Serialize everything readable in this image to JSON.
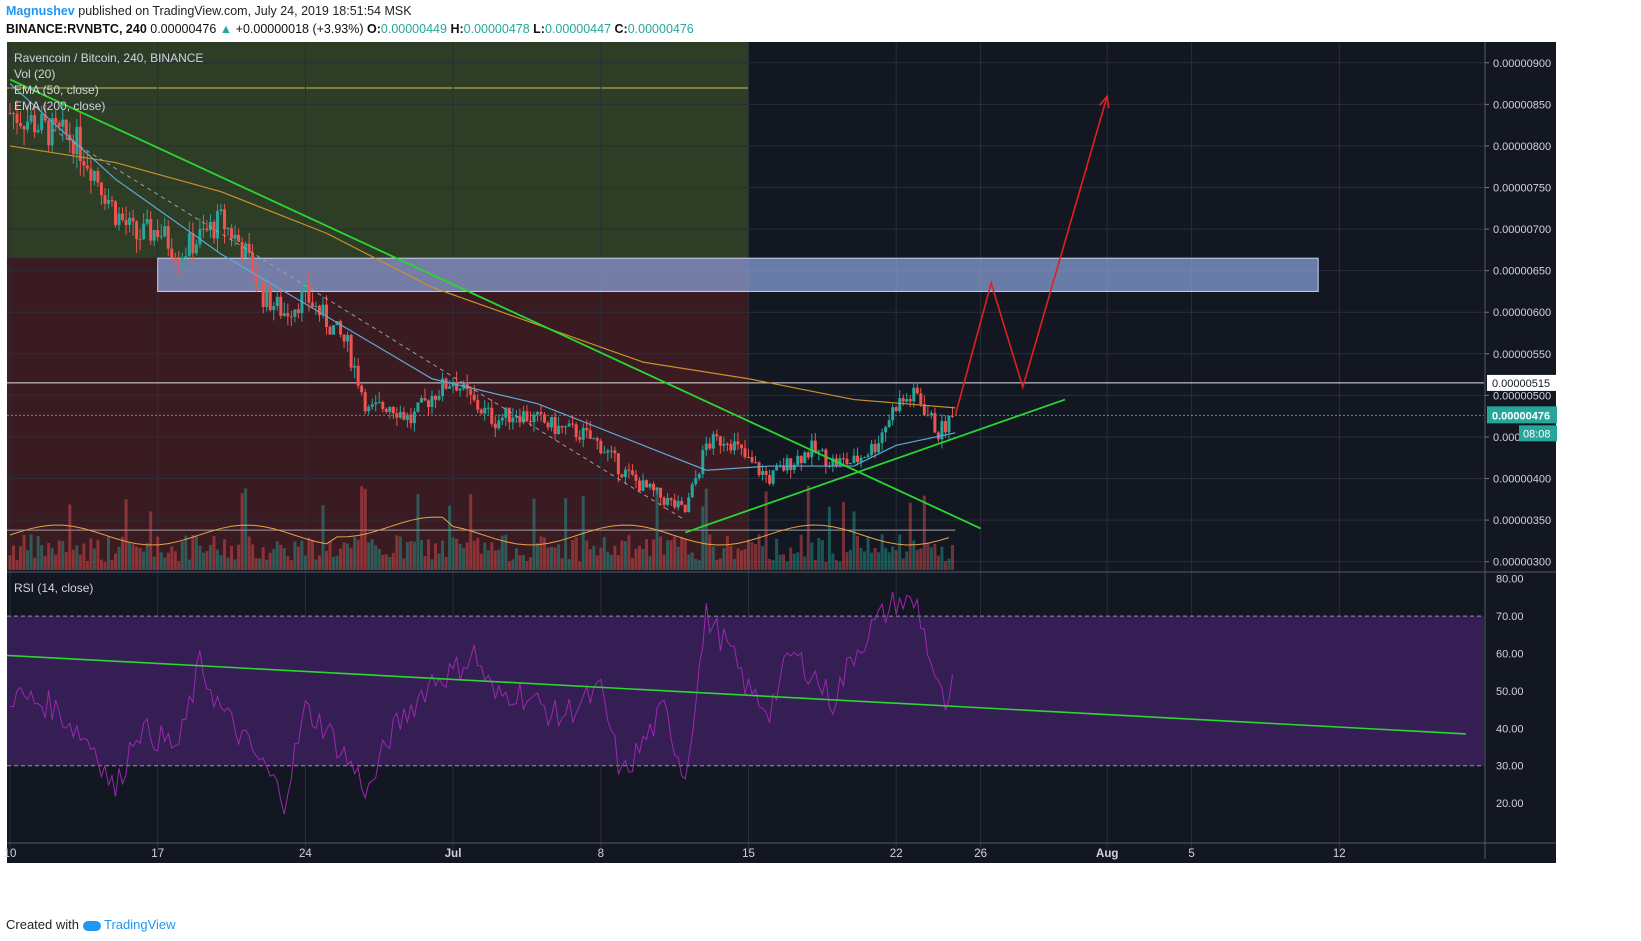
{
  "header": {
    "author": "Magnushev",
    "published": "published on TradingView.com, July 24, 2019 18:51:54 MSK",
    "symbol": "BINANCE:RVNBTC, 240",
    "last": "0.00000476",
    "change": "+0.00000018 (+3.93%)",
    "open_label": "O:",
    "open": "0.00000449",
    "high_label": "H:",
    "high": "0.00000478",
    "low_label": "L:",
    "low": "0.00000447",
    "close_label": "C:",
    "close": "0.00000476"
  },
  "legend": {
    "title": "Ravencoin / Bitcoin, 240, BINANCE",
    "vol": "Vol (20)",
    "ema50": "EMA (50, close)",
    "ema200": "EMA (200, close)",
    "rsi": "RSI (14, close)"
  },
  "price_axis": {
    "ticks": [
      "0.00000900",
      "0.00000850",
      "0.00000800",
      "0.00000750",
      "0.00000700",
      "0.00000650",
      "0.00000600",
      "0.00000550",
      "0.00000500",
      "0.00000450",
      "0.00000400",
      "0.00000350",
      "0.00000300"
    ],
    "range": [
      2.9e-06,
      9.25e-06
    ],
    "level_label": "0.00000515",
    "level": 5.15e-06,
    "last_label": "0.00000476",
    "last": 4.76e-06,
    "countdown": "08:08"
  },
  "rsi_axis": {
    "ticks": [
      "80.00",
      "70.00",
      "60.00",
      "50.00",
      "40.00",
      "30.00",
      "20.00"
    ],
    "range": [
      12,
      81
    ],
    "band": [
      30,
      70
    ]
  },
  "time_axis": {
    "labels": [
      "10",
      "17",
      "24",
      "Jul",
      "8",
      "15",
      "22",
      "26",
      "Aug",
      "5",
      "12"
    ],
    "label_days": [
      0,
      7,
      14,
      21,
      28,
      35,
      42,
      46,
      52,
      56,
      63
    ]
  },
  "colors": {
    "bull": "#26a69a",
    "bear": "#ef5350",
    "ema50": "#5fa8d3",
    "ema200": "#c8902a",
    "trendline": "#2bd630",
    "projection": "#e02020",
    "rsi_line": "#9c27b0",
    "zone_green": "#2e3d26",
    "zone_red": "#3a1b22",
    "resistance_box": "#8ea7e0",
    "bg": "#131722"
  },
  "chart_data": {
    "type": "candlestick",
    "title": "Ravencoin / Bitcoin, 240, BINANCE",
    "x_unit": "days since Jun 10, 2019",
    "price_path": [
      [
        0,
        8.4e-06
      ],
      [
        1,
        8.3e-06
      ],
      [
        2,
        8.15e-06
      ],
      [
        3,
        8.1e-06
      ],
      [
        4,
        7.7e-06
      ],
      [
        5,
        7.2e-06
      ],
      [
        6,
        6.9e-06
      ],
      [
        7,
        7e-06
      ],
      [
        8,
        6.7e-06
      ],
      [
        9,
        6.9e-06
      ],
      [
        10,
        7.1e-06
      ],
      [
        11,
        6.8e-06
      ],
      [
        12,
        6.2e-06
      ],
      [
        13,
        6e-06
      ],
      [
        14,
        6.2e-06
      ],
      [
        15,
        5.9e-06
      ],
      [
        16,
        5.6e-06
      ],
      [
        17,
        4.8e-06
      ],
      [
        18,
        4.9e-06
      ],
      [
        19,
        4.7e-06
      ],
      [
        20,
        5e-06
      ],
      [
        21,
        5.2e-06
      ],
      [
        22,
        4.9e-06
      ],
      [
        23,
        4.7e-06
      ],
      [
        24,
        4.8e-06
      ],
      [
        25,
        4.7e-06
      ],
      [
        26,
        4.6e-06
      ],
      [
        27,
        4.55e-06
      ],
      [
        28,
        4.4e-06
      ],
      [
        29,
        4.1e-06
      ],
      [
        30,
        3.9e-06
      ],
      [
        31,
        3.75e-06
      ],
      [
        32,
        3.6e-06
      ],
      [
        33,
        4.4e-06
      ],
      [
        34,
        4.5e-06
      ],
      [
        35,
        4.2e-06
      ],
      [
        36,
        4e-06
      ],
      [
        37,
        4.2e-06
      ],
      [
        38,
        4.35e-06
      ],
      [
        39,
        4.2e-06
      ],
      [
        40,
        4.2e-06
      ],
      [
        41,
        4.4e-06
      ],
      [
        42,
        4.9e-06
      ],
      [
        43,
        5e-06
      ],
      [
        44,
        4.55e-06
      ],
      [
        44.8,
        4.76e-06
      ]
    ],
    "ema50": [
      [
        0,
        8.75e-06
      ],
      [
        5,
        7.6e-06
      ],
      [
        10,
        6.7e-06
      ],
      [
        15,
        5.95e-06
      ],
      [
        20,
        5.2e-06
      ],
      [
        25,
        4.9e-06
      ],
      [
        30,
        4.4e-06
      ],
      [
        33,
        4.1e-06
      ],
      [
        36,
        4.15e-06
      ],
      [
        40,
        4.15e-06
      ],
      [
        42,
        4.4e-06
      ],
      [
        44.8,
        4.55e-06
      ]
    ],
    "ema200": [
      [
        0,
        8e-06
      ],
      [
        5,
        7.8e-06
      ],
      [
        10,
        7.45e-06
      ],
      [
        15,
        6.95e-06
      ],
      [
        20,
        6.3e-06
      ],
      [
        25,
        5.85e-06
      ],
      [
        30,
        5.4e-06
      ],
      [
        35,
        5.2e-06
      ],
      [
        40,
        4.95e-06
      ],
      [
        44.8,
        4.85e-06
      ]
    ],
    "trendlines": [
      {
        "from": [
          0,
          8.8e-06
        ],
        "to": [
          46,
          3.4e-06
        ]
      },
      {
        "from": [
          32,
          3.35e-06
        ],
        "to": [
          50,
          4.95e-06
        ]
      }
    ],
    "projection": [
      [
        44.8,
        4.76e-06
      ],
      [
        46.5,
        6.35e-06
      ],
      [
        48,
        5.1e-06
      ],
      [
        52,
        8.6e-06
      ]
    ],
    "zones": [
      {
        "from_day": 0,
        "to_day": 35,
        "low": 6.65e-06,
        "high": 9.25e-06,
        "kind": "green"
      },
      {
        "from_day": 0,
        "to_day": 35,
        "low": 2.9e-06,
        "high": 6.65e-06,
        "kind": "red"
      }
    ],
    "resistance_box": {
      "from_day": 7,
      "to_day": 62,
      "low": 6.25e-06,
      "high": 6.65e-06
    },
    "rsi_path": [
      [
        0,
        49
      ],
      [
        2,
        46
      ],
      [
        4,
        35
      ],
      [
        5,
        23
      ],
      [
        6,
        40
      ],
      [
        8,
        35
      ],
      [
        9,
        57
      ],
      [
        10,
        45
      ],
      [
        12,
        30
      ],
      [
        13,
        21
      ],
      [
        14,
        45
      ],
      [
        15,
        40
      ],
      [
        17,
        23
      ],
      [
        18,
        38
      ],
      [
        20,
        53
      ],
      [
        21,
        55
      ],
      [
        22,
        60
      ],
      [
        23,
        48
      ],
      [
        24,
        50
      ],
      [
        26,
        43
      ],
      [
        28,
        50
      ],
      [
        29,
        27
      ],
      [
        31,
        45
      ],
      [
        32,
        27
      ],
      [
        33,
        70
      ],
      [
        34,
        62
      ],
      [
        35,
        50
      ],
      [
        36,
        45
      ],
      [
        37,
        60
      ],
      [
        38,
        55
      ],
      [
        39,
        47
      ],
      [
        40,
        60
      ],
      [
        41,
        68
      ],
      [
        42,
        74
      ],
      [
        43,
        73
      ],
      [
        44,
        50
      ],
      [
        44.5,
        44
      ],
      [
        44.8,
        57
      ]
    ],
    "rsi_trendline": {
      "from": [
        0,
        59.5
      ],
      "to": [
        69,
        38.5
      ]
    }
  },
  "footer": {
    "created": "Created with",
    "brand": "TradingView"
  }
}
